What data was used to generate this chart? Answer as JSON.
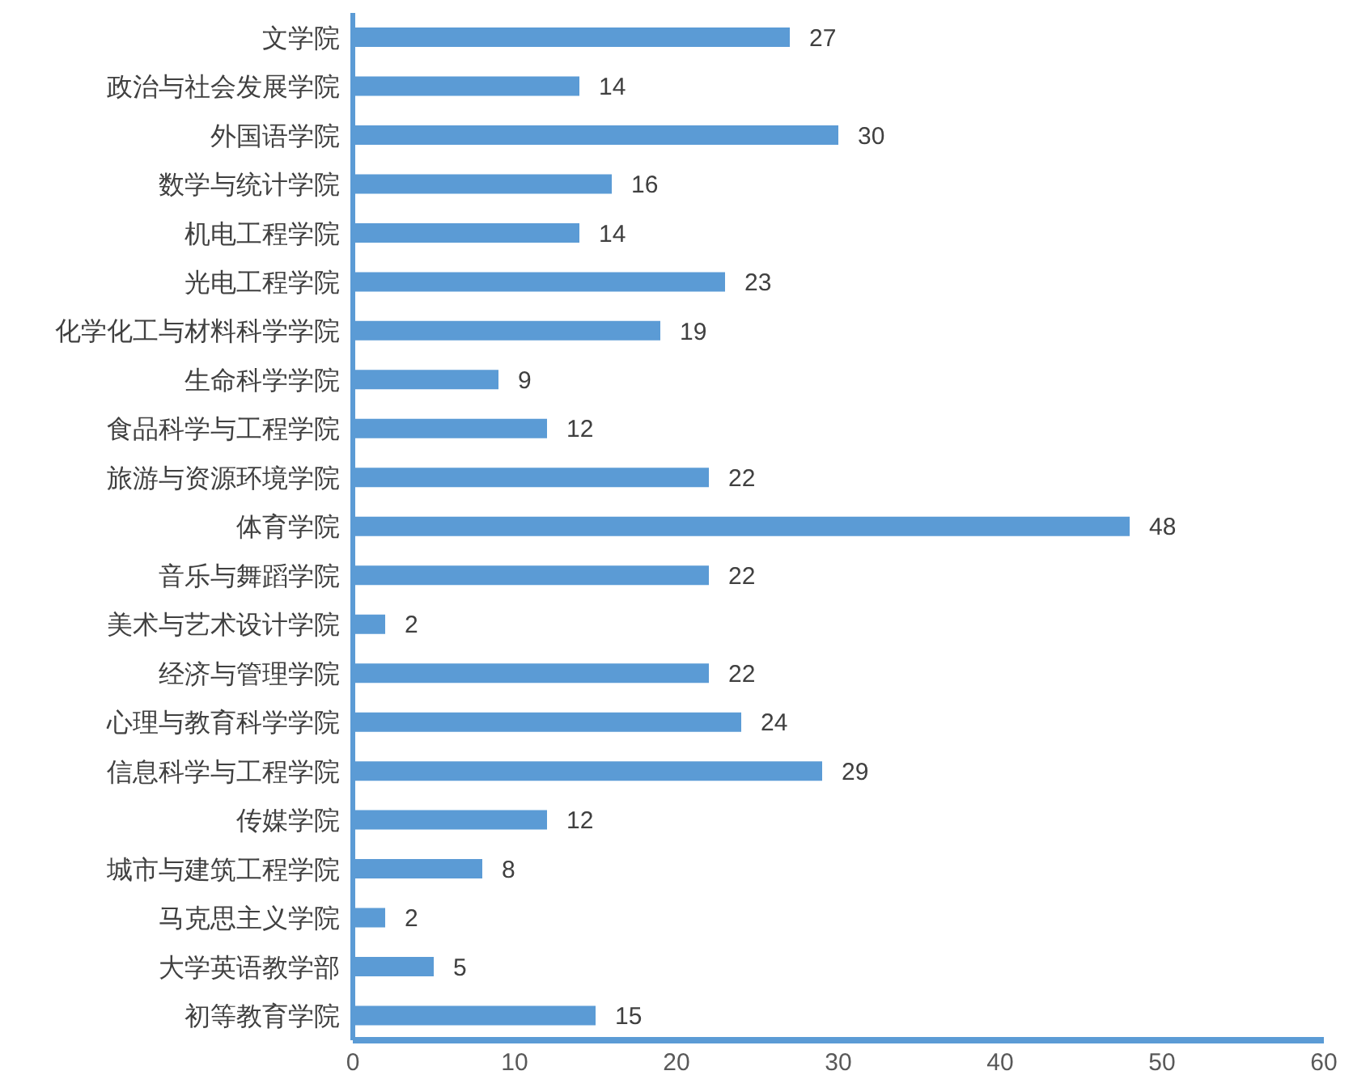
{
  "chart_data": {
    "type": "bar",
    "orientation": "horizontal",
    "categories": [
      "文学院",
      "政治与社会发展学院",
      "外国语学院",
      "数学与统计学院",
      "机电工程学院",
      "光电工程学院",
      "化学化工与材料科学学院",
      "生命科学学院",
      "食品科学与工程学院",
      "旅游与资源环境学院",
      "体育学院",
      "音乐与舞蹈学院",
      "美术与艺术设计学院",
      "经济与管理学院",
      "心理与教育科学学院",
      "信息科学与工程学院",
      "传媒学院",
      "城市与建筑工程学院",
      "马克思主义学院",
      "大学英语教学部",
      "初等教育学院"
    ],
    "values": [
      27,
      14,
      30,
      16,
      14,
      23,
      19,
      9,
      12,
      22,
      48,
      22,
      2,
      22,
      24,
      29,
      12,
      8,
      2,
      5,
      15
    ],
    "color": "#5b9bd5",
    "xlim": [
      0,
      60
    ],
    "xticks": [
      0,
      10,
      20,
      30,
      40,
      50,
      60
    ],
    "data_labels": true,
    "grid": false,
    "legend": false
  }
}
